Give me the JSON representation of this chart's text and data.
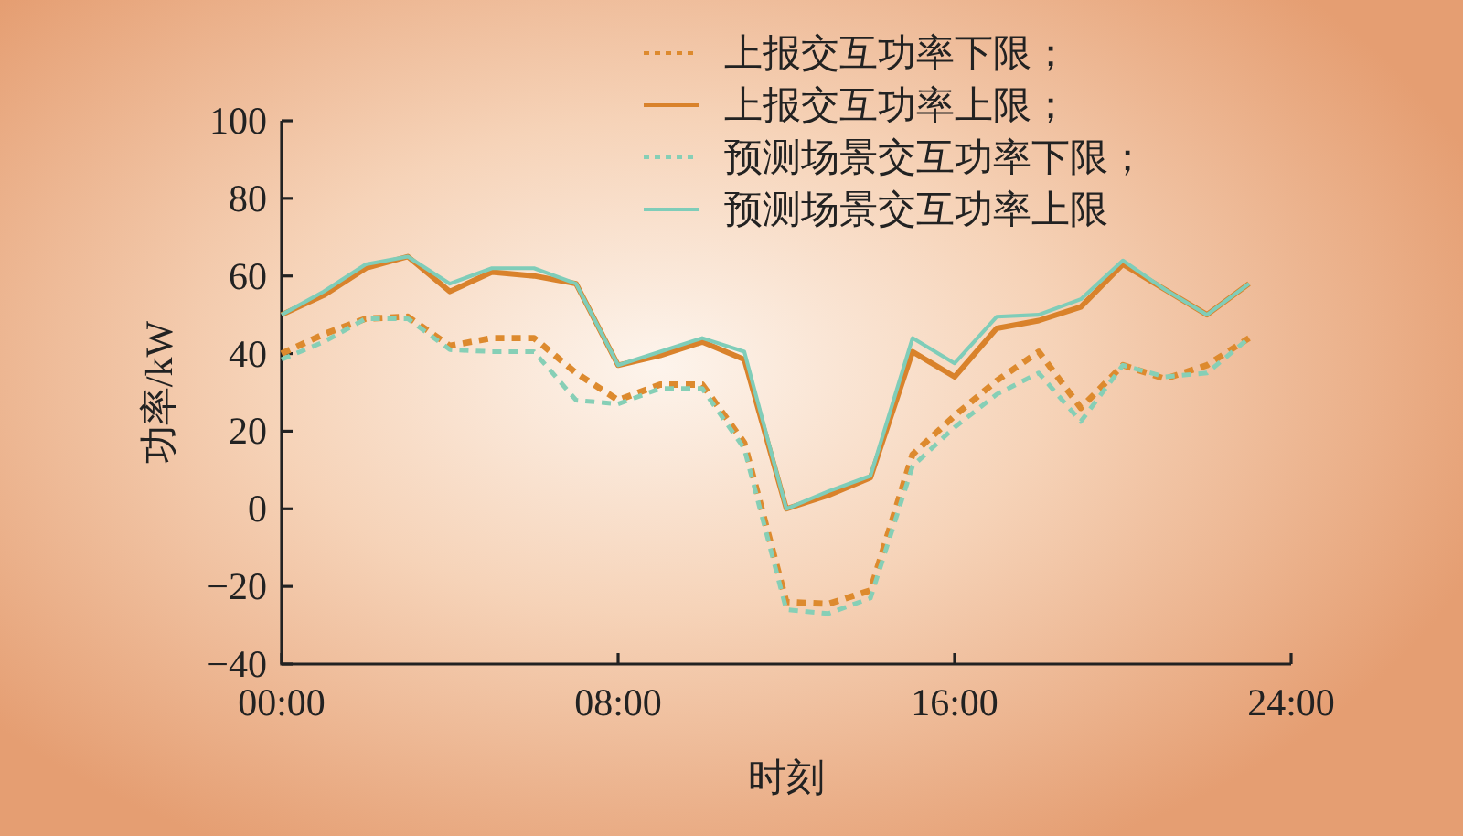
{
  "chart_data": {
    "type": "line",
    "xlabel": "时刻",
    "ylabel": "功率/kW",
    "x": [
      0,
      1,
      2,
      3,
      4,
      5,
      6,
      7,
      8,
      9,
      10,
      11,
      12,
      13,
      14,
      15,
      16,
      17,
      18,
      19,
      20,
      21,
      22,
      23
    ],
    "xlim": [
      0,
      24
    ],
    "xticks": [
      {
        "value": 0,
        "label": "00:00"
      },
      {
        "value": 8,
        "label": "08:00"
      },
      {
        "value": 16,
        "label": "16:00"
      },
      {
        "value": 24,
        "label": "24:00"
      }
    ],
    "ylim": [
      -40,
      100
    ],
    "yticks": [
      -40,
      -20,
      0,
      20,
      40,
      60,
      80,
      100
    ],
    "legend": "top right",
    "grid": false,
    "series": [
      {
        "name": "上报交互功率下限；",
        "color": "#dd8a2e",
        "line_style": "dashed",
        "values": [
          40,
          45,
          49,
          49.5,
          42,
          44,
          44,
          35,
          28,
          32,
          32,
          17,
          -24,
          -24.5,
          -21,
          14,
          24,
          33,
          40.5,
          26,
          37,
          33.5,
          37,
          44
        ]
      },
      {
        "name": "上报交互功率上限；",
        "color": "#d9822b",
        "line_style": "solid",
        "values": [
          50,
          55,
          62,
          65,
          56,
          61,
          60,
          58,
          37,
          39.5,
          43,
          38.5,
          0,
          3.5,
          8,
          40.5,
          34,
          46.5,
          48.5,
          52,
          63,
          56.5,
          50,
          58
        ]
      },
      {
        "name": "预测场景交互功率下限；",
        "color": "#86cfb6",
        "line_style": "dashed",
        "values": [
          38.5,
          43,
          49,
          49,
          41,
          40.5,
          40.5,
          28,
          27,
          31,
          31,
          15.5,
          -26,
          -27,
          -23,
          11,
          21,
          29.5,
          35,
          22.5,
          37,
          34,
          35,
          44
        ]
      },
      {
        "name": "预测场景交互功率上限",
        "color": "#7fcdb9",
        "line_style": "solid",
        "values": [
          50,
          56,
          63,
          65,
          58,
          62,
          62,
          58,
          37,
          40.5,
          44,
          40.5,
          0,
          4.5,
          8.5,
          44,
          37.5,
          49.5,
          50,
          54,
          64,
          56.5,
          50,
          58
        ]
      }
    ]
  }
}
